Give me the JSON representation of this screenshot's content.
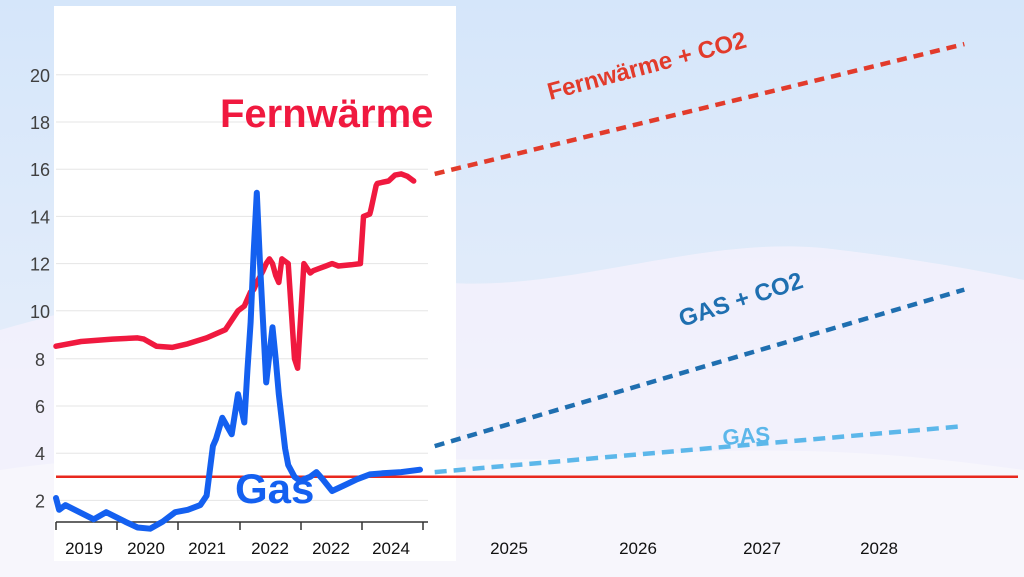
{
  "chart_data": {
    "type": "line",
    "y_tick_labels": [
      "2",
      "4",
      "6",
      "8",
      "10",
      "12",
      "14",
      "16",
      "18",
      "20"
    ],
    "x_tick_labels": [
      "2019",
      "2020",
      "2021",
      "2022",
      "2022",
      "2024",
      "2025",
      "2026",
      "2027",
      "2028"
    ],
    "ylim": [
      0.5,
      21.5
    ],
    "grid": true,
    "colors": {
      "fernwaerme": "#f0193f",
      "gas": "#1460f0",
      "forecast_fernwaerme_co2": "#e23b2b",
      "forecast_gas_co2": "#1f6fb0",
      "forecast_gas": "#5cb7ea",
      "reference_line": "#e8281e"
    },
    "reference_line": {
      "y": 3.0
    },
    "series": [
      {
        "name": "Fernwärme",
        "style": "solid",
        "x": [
          2018.6,
          2019.0,
          2019.5,
          2019.9,
          2020.0,
          2020.2,
          2020.45,
          2020.7,
          2021.0,
          2021.3,
          2021.5,
          2021.6,
          2021.7,
          2021.75,
          2021.8,
          2021.9,
          2021.95,
          2022.0,
          2022.05,
          2022.1,
          2022.15,
          2022.2,
          2022.3,
          2022.4,
          2022.45,
          2022.55,
          2022.6,
          2022.65,
          2022.7,
          2022.8,
          2022.9,
          2023.0,
          2023.1,
          2023.3,
          2023.45,
          2023.5,
          2023.6,
          2023.62,
          2023.7,
          2023.72,
          2023.9,
          2024.0,
          2024.1,
          2024.2,
          2024.3
        ],
        "values": [
          8.5,
          8.7,
          8.8,
          8.85,
          8.8,
          8.5,
          8.45,
          8.6,
          8.85,
          9.2,
          10.0,
          10.2,
          10.8,
          10.9,
          11.2,
          11.7,
          12.0,
          12.2,
          12.0,
          11.5,
          11.2,
          12.2,
          12.0,
          8.0,
          7.6,
          12.0,
          11.8,
          11.6,
          11.7,
          11.8,
          11.9,
          12.0,
          11.9,
          11.95,
          12.0,
          14.0,
          14.1,
          14.3,
          15.3,
          15.4,
          15.5,
          15.75,
          15.8,
          15.7,
          15.5
        ]
      },
      {
        "name": "Gas",
        "style": "solid",
        "x": [
          2018.6,
          2018.65,
          2018.75,
          2018.9,
          2019.2,
          2019.4,
          2019.7,
          2019.9,
          2020.1,
          2020.3,
          2020.5,
          2020.7,
          2020.9,
          2021.0,
          2021.1,
          2021.15,
          2021.25,
          2021.4,
          2021.5,
          2021.6,
          2021.65,
          2021.7,
          2021.75,
          2021.8,
          2021.85,
          2021.95,
          2022.05,
          2022.1,
          2022.15,
          2022.25,
          2022.3,
          2022.4,
          2022.5,
          2022.55,
          2022.65,
          2022.75,
          2022.85,
          2023.0,
          2023.2,
          2023.4,
          2023.6,
          2023.8,
          2024.1,
          2024.4
        ],
        "values": [
          2.1,
          1.6,
          1.8,
          1.6,
          1.2,
          1.5,
          1.1,
          0.85,
          0.8,
          1.1,
          1.5,
          1.6,
          1.8,
          2.2,
          4.3,
          4.6,
          5.5,
          4.8,
          6.5,
          5.3,
          7.5,
          9.5,
          12.5,
          15.0,
          12.0,
          7.0,
          9.3,
          8.0,
          6.5,
          4.2,
          3.5,
          3.0,
          2.8,
          2.9,
          3.0,
          3.2,
          2.9,
          2.4,
          2.65,
          2.9,
          3.1,
          3.15,
          3.2,
          3.3
        ]
      },
      {
        "name": "Fernwärme + CO2",
        "style": "dotted",
        "x": [
          2024.5,
          2028.7
        ],
        "values": [
          15.8,
          21.3
        ]
      },
      {
        "name": "GAS + CO2",
        "style": "dotted",
        "x": [
          2024.5,
          2028.7
        ],
        "values": [
          4.3,
          10.9
        ]
      },
      {
        "name": "GAS",
        "style": "dotted",
        "x": [
          2024.5,
          2028.7
        ],
        "values": [
          3.2,
          5.15
        ]
      }
    ]
  }
}
